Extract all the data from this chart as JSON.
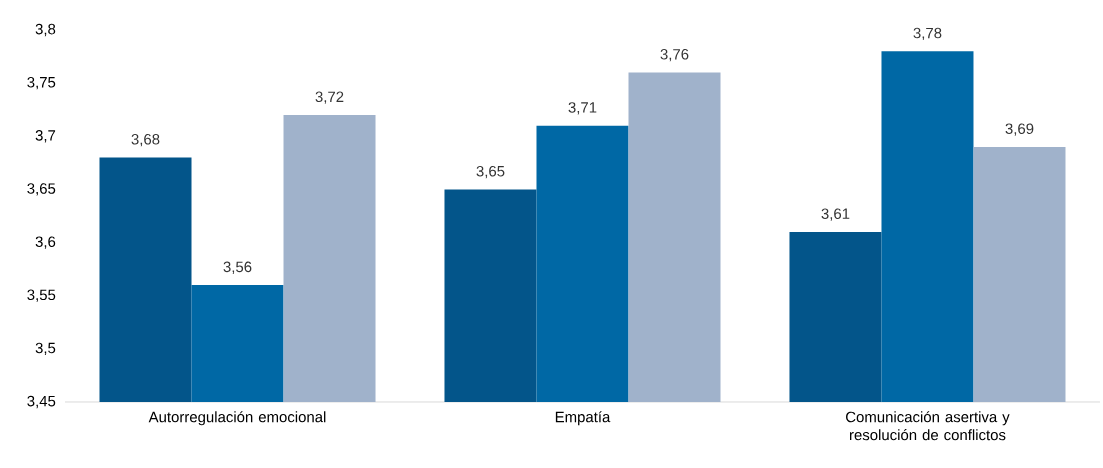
{
  "chart_data": {
    "type": "bar",
    "categories": [
      "Autorregulación emocional",
      "Empatía",
      "Comunicación asertiva y resolución de conflictos"
    ],
    "series": [
      {
        "color": "#03558a",
        "values": [
          3.68,
          3.65,
          3.61
        ],
        "value_labels": [
          "3,68",
          "3,65",
          "3,61"
        ]
      },
      {
        "color": "#0068a5",
        "values": [
          3.56,
          3.71,
          3.78
        ],
        "value_labels": [
          "3,56",
          "3,71",
          "3,78"
        ]
      },
      {
        "color": "#a0b2cb",
        "values": [
          3.72,
          3.76,
          3.69
        ],
        "value_labels": [
          "3,72",
          "3,76",
          "3,69"
        ]
      }
    ],
    "ylim": [
      3.45,
      3.8
    ],
    "yticks": [
      {
        "value": 3.45,
        "label": "3,45"
      },
      {
        "value": 3.5,
        "label": "3,5"
      },
      {
        "value": 3.55,
        "label": "3,55"
      },
      {
        "value": 3.6,
        "label": "3,6"
      },
      {
        "value": 3.65,
        "label": "3,65"
      },
      {
        "value": 3.7,
        "label": "3,7"
      },
      {
        "value": 3.75,
        "label": "3,75"
      },
      {
        "value": 3.8,
        "label": "3,8"
      }
    ],
    "grid": false
  }
}
